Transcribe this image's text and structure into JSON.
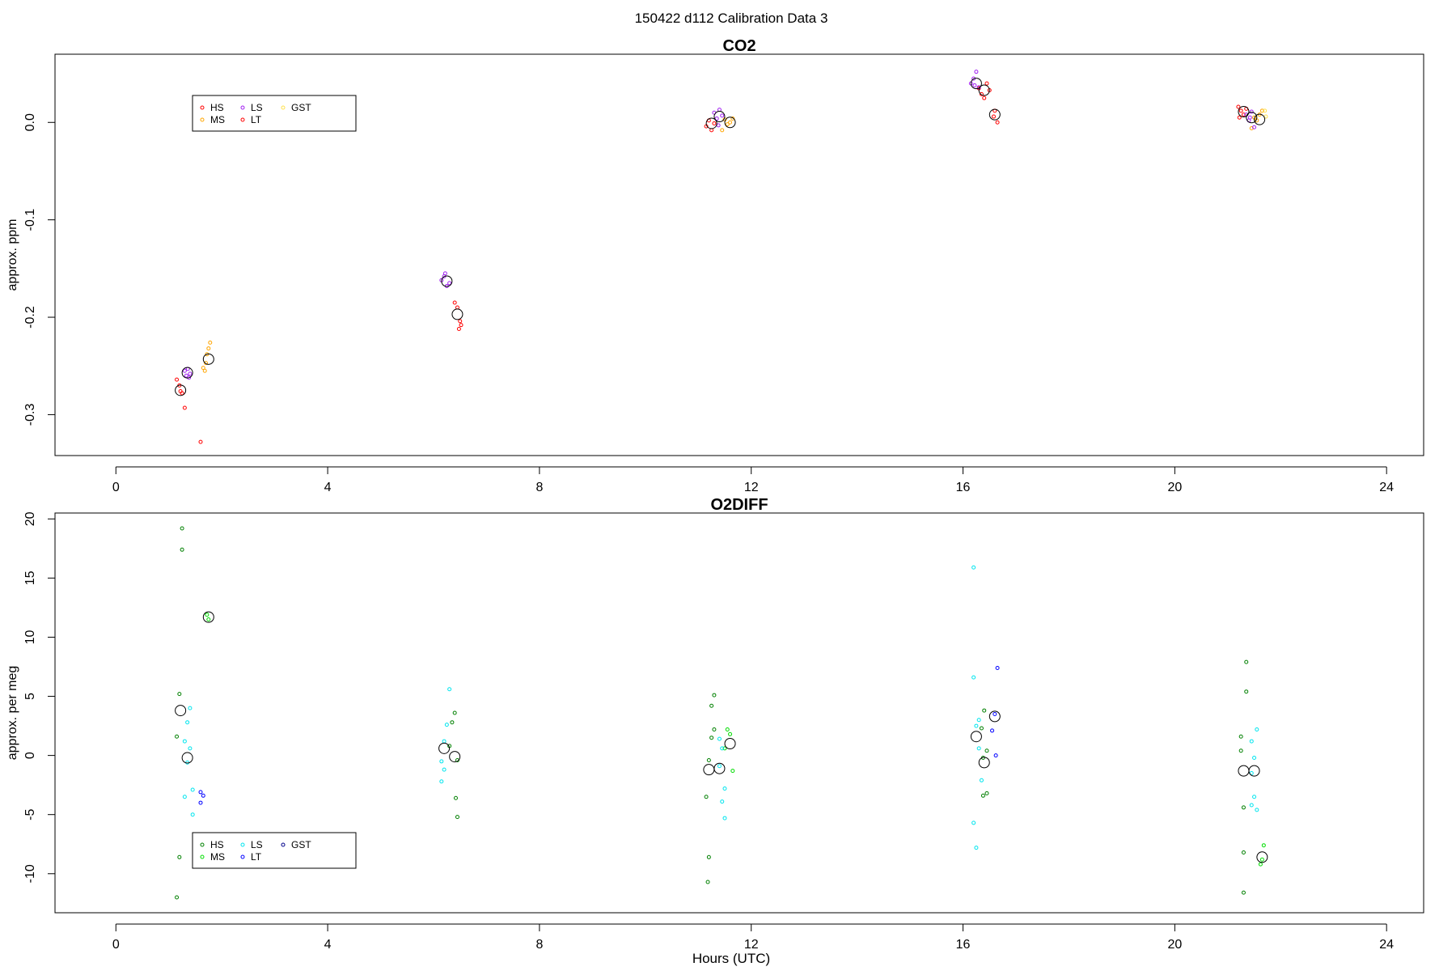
{
  "figure": {
    "title": "150422   d112   Calibration Data 3",
    "xlabel": "Hours (UTC)"
  },
  "chart_data": [
    {
      "type": "scatter",
      "title": "CO2",
      "xlabel": "",
      "ylabel": "approx. ppm",
      "xlim": [
        -1.15,
        24.7
      ],
      "ylim": [
        -0.342,
        0.07
      ],
      "xticks": [
        0,
        4,
        8,
        12,
        16,
        20,
        24
      ],
      "yticks": [
        0.0,
        -0.1,
        -0.2,
        -0.3
      ],
      "ytick_labels": [
        "0.0",
        "-0.1",
        "-0.2",
        "-0.3"
      ],
      "legend": {
        "position": "top-left",
        "entries": [
          "HS",
          "MS",
          "LS",
          "LT",
          "GST"
        ]
      },
      "series": [
        {
          "name": "HS",
          "color": "#FF0000",
          "points": [
            [
              1.15,
              -0.264
            ],
            [
              1.2,
              -0.27
            ],
            [
              1.25,
              -0.278
            ],
            [
              1.3,
              -0.293
            ],
            [
              1.22,
              -0.276
            ],
            [
              11.15,
              -0.004
            ],
            [
              11.2,
              0.002
            ],
            [
              11.25,
              -0.008
            ],
            [
              11.3,
              -0.001
            ],
            [
              16.3,
              0.035
            ],
            [
              16.35,
              0.029
            ],
            [
              16.4,
              0.025
            ],
            [
              16.45,
              0.04
            ],
            [
              16.5,
              0.033
            ],
            [
              21.2,
              0.016
            ],
            [
              21.25,
              0.012
            ],
            [
              21.3,
              0.008
            ],
            [
              21.22,
              0.005
            ],
            [
              21.35,
              0.014
            ]
          ]
        },
        {
          "name": "MS",
          "color": "#FFA500",
          "points": [
            [
              1.65,
              -0.252
            ],
            [
              1.7,
              -0.247
            ],
            [
              1.72,
              -0.238
            ],
            [
              1.75,
              -0.232
            ],
            [
              1.78,
              -0.226
            ],
            [
              1.68,
              -0.255
            ],
            [
              11.5,
              0.003
            ],
            [
              11.55,
              -0.002
            ],
            [
              11.6,
              0.0
            ],
            [
              11.45,
              -0.008
            ],
            [
              11.65,
              0.004
            ],
            [
              21.5,
              0.005
            ],
            [
              21.55,
              0.002
            ],
            [
              21.6,
              0.008
            ],
            [
              21.65,
              0.012
            ],
            [
              21.45,
              -0.006
            ]
          ]
        },
        {
          "name": "LS",
          "color": "#A020F0",
          "points": [
            [
              1.3,
              -0.255
            ],
            [
              1.33,
              -0.26
            ],
            [
              1.36,
              -0.253
            ],
            [
              1.4,
              -0.258
            ],
            [
              1.38,
              -0.262
            ],
            [
              6.15,
              -0.162
            ],
            [
              6.2,
              -0.158
            ],
            [
              6.25,
              -0.168
            ],
            [
              6.22,
              -0.155
            ],
            [
              6.3,
              -0.165
            ],
            [
              11.3,
              0.01
            ],
            [
              11.35,
              0.004
            ],
            [
              11.4,
              0.013
            ],
            [
              11.45,
              0.007
            ],
            [
              11.38,
              -0.003
            ],
            [
              16.15,
              0.04
            ],
            [
              16.2,
              0.045
            ],
            [
              16.25,
              0.052
            ],
            [
              16.3,
              0.036
            ],
            [
              16.22,
              0.038
            ],
            [
              21.35,
              0.008
            ],
            [
              21.4,
              0.002
            ],
            [
              21.45,
              0.011
            ],
            [
              21.5,
              -0.005
            ],
            [
              21.42,
              0.005
            ]
          ]
        },
        {
          "name": "LT",
          "color": "#FF0000",
          "points": [
            [
              1.6,
              -0.328
            ],
            [
              6.4,
              -0.185
            ],
            [
              6.45,
              -0.19
            ],
            [
              6.5,
              -0.204
            ],
            [
              6.48,
              -0.212
            ],
            [
              6.52,
              -0.208
            ],
            [
              16.6,
              0.012
            ],
            [
              16.65,
              0.0
            ],
            [
              16.58,
              0.006
            ]
          ]
        },
        {
          "name": "GST",
          "color": "#FFE14D",
          "points": [
            [
              21.7,
              0.012
            ],
            [
              21.72,
              0.006
            ]
          ]
        },
        {
          "name": "",
          "color": "#000000",
          "big": true,
          "points": [
            [
              1.22,
              -0.275
            ],
            [
              1.35,
              -0.257
            ],
            [
              1.75,
              -0.243
            ],
            [
              6.25,
              -0.163
            ],
            [
              6.45,
              -0.197
            ],
            [
              11.25,
              -0.001
            ],
            [
              11.4,
              0.006
            ],
            [
              11.6,
              0.0
            ],
            [
              16.25,
              0.04
            ],
            [
              16.4,
              0.033
            ],
            [
              16.6,
              0.008
            ],
            [
              21.3,
              0.011
            ],
            [
              21.45,
              0.005
            ],
            [
              21.6,
              0.003
            ]
          ]
        }
      ]
    },
    {
      "type": "scatter",
      "title": "O2DIFF",
      "xlabel": "Hours (UTC)",
      "ylabel": "approx. per meg",
      "xlim": [
        -1.15,
        24.7
      ],
      "ylim": [
        -13.3,
        20.5
      ],
      "xticks": [
        0,
        4,
        8,
        12,
        16,
        20,
        24
      ],
      "yticks": [
        20,
        15,
        10,
        5,
        0,
        -5,
        -10
      ],
      "ytick_labels": [
        "20",
        "15",
        "10",
        "5",
        "0",
        "-5",
        "-10"
      ],
      "legend": {
        "position": "bottom-left",
        "entries": [
          "HS",
          "MS",
          "LS",
          "LT",
          "GST"
        ]
      },
      "series": [
        {
          "name": "HS",
          "color": "#008000",
          "points": [
            [
              1.25,
              19.2
            ],
            [
              1.25,
              17.4
            ],
            [
              1.2,
              5.2
            ],
            [
              1.15,
              1.6
            ],
            [
              1.2,
              -8.6
            ],
            [
              1.15,
              -12.0
            ],
            [
              6.35,
              2.8
            ],
            [
              6.4,
              3.6
            ],
            [
              6.45,
              -0.4
            ],
            [
              6.42,
              -3.6
            ],
            [
              6.45,
              -5.2
            ],
            [
              6.3,
              0.8
            ],
            [
              11.3,
              5.1
            ],
            [
              11.25,
              4.2
            ],
            [
              11.3,
              2.2
            ],
            [
              11.25,
              1.5
            ],
            [
              11.2,
              -0.4
            ],
            [
              11.15,
              -3.5
            ],
            [
              11.2,
              -8.6
            ],
            [
              11.18,
              -10.7
            ],
            [
              16.4,
              3.8
            ],
            [
              16.35,
              2.3
            ],
            [
              16.45,
              0.4
            ],
            [
              16.38,
              -0.2
            ],
            [
              16.45,
              -3.2
            ],
            [
              16.38,
              -3.4
            ],
            [
              21.35,
              7.9
            ],
            [
              21.35,
              5.4
            ],
            [
              21.25,
              1.6
            ],
            [
              21.25,
              0.4
            ],
            [
              21.3,
              -4.4
            ],
            [
              21.3,
              -8.2
            ],
            [
              21.3,
              -11.6
            ]
          ]
        },
        {
          "name": "MS",
          "color": "#00DD00",
          "points": [
            [
              1.72,
              11.9
            ],
            [
              1.75,
              11.5
            ],
            [
              11.55,
              2.2
            ],
            [
              11.6,
              1.8
            ],
            [
              11.65,
              -1.3
            ],
            [
              11.5,
              0.6
            ],
            [
              21.68,
              -7.6
            ],
            [
              21.62,
              -9.2
            ],
            [
              21.65,
              -8.8
            ]
          ]
        },
        {
          "name": "LS",
          "color": "#00E5EE",
          "points": [
            [
              1.4,
              4.0
            ],
            [
              1.35,
              2.8
            ],
            [
              1.3,
              1.2
            ],
            [
              1.4,
              0.6
            ],
            [
              1.35,
              -0.6
            ],
            [
              1.45,
              -2.9
            ],
            [
              1.3,
              -3.5
            ],
            [
              1.45,
              -5.0
            ],
            [
              6.3,
              5.6
            ],
            [
              6.25,
              2.6
            ],
            [
              6.2,
              1.2
            ],
            [
              6.15,
              -0.5
            ],
            [
              6.2,
              -1.2
            ],
            [
              6.15,
              -2.2
            ],
            [
              11.4,
              1.4
            ],
            [
              11.45,
              0.6
            ],
            [
              11.4,
              -0.9
            ],
            [
              11.5,
              -2.8
            ],
            [
              11.45,
              -3.9
            ],
            [
              11.5,
              -5.3
            ],
            [
              16.2,
              15.9
            ],
            [
              16.2,
              6.6
            ],
            [
              16.3,
              3.0
            ],
            [
              16.25,
              2.5
            ],
            [
              16.3,
              0.6
            ],
            [
              16.35,
              -2.1
            ],
            [
              16.2,
              -5.7
            ],
            [
              16.25,
              -7.8
            ],
            [
              21.55,
              2.2
            ],
            [
              21.45,
              1.2
            ],
            [
              21.5,
              -0.2
            ],
            [
              21.45,
              -1.5
            ],
            [
              21.5,
              -3.5
            ],
            [
              21.45,
              -4.2
            ],
            [
              21.55,
              -4.6
            ]
          ]
        },
        {
          "name": "LT",
          "color": "#0000FF",
          "points": [
            [
              1.6,
              -3.1
            ],
            [
              1.65,
              -3.4
            ],
            [
              1.6,
              -4.0
            ],
            [
              16.65,
              7.4
            ],
            [
              16.6,
              3.5
            ],
            [
              16.55,
              2.1
            ],
            [
              16.62,
              0.0
            ]
          ]
        },
        {
          "name": "GST",
          "color": "#00008B",
          "points": []
        },
        {
          "name": "",
          "color": "#000000",
          "big": true,
          "points": [
            [
              1.22,
              3.8
            ],
            [
              1.35,
              -0.2
            ],
            [
              1.75,
              11.7
            ],
            [
              6.2,
              0.6
            ],
            [
              6.4,
              -0.1
            ],
            [
              11.2,
              -1.2
            ],
            [
              11.4,
              -1.1
            ],
            [
              11.6,
              1.0
            ],
            [
              16.25,
              1.6
            ],
            [
              16.4,
              -0.6
            ],
            [
              16.6,
              3.3
            ],
            [
              21.3,
              -1.3
            ],
            [
              21.5,
              -1.3
            ],
            [
              21.65,
              -8.6
            ]
          ]
        }
      ]
    }
  ]
}
